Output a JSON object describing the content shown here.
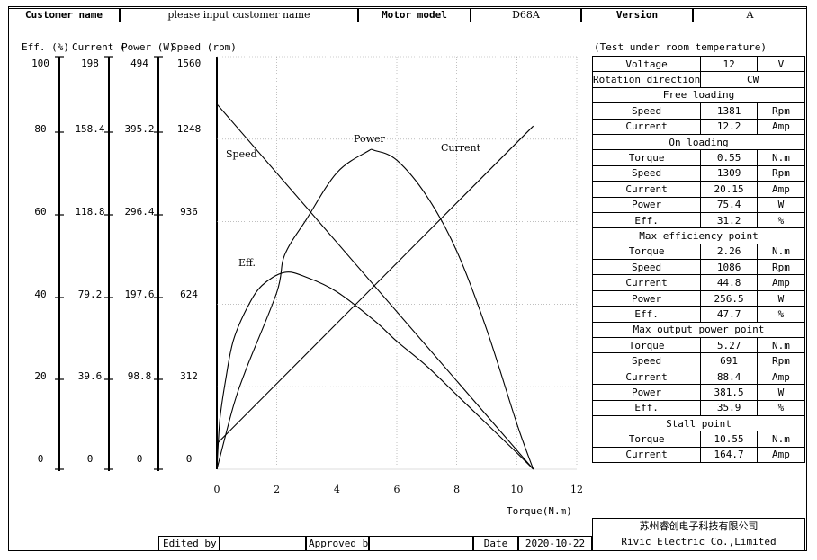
{
  "header": {
    "customer_name_label": "Customer name",
    "customer_name_value": "please input customer name",
    "motor_model_label": "Motor model",
    "motor_model_value": "D68A",
    "version_label": "Version",
    "version_value": "A"
  },
  "axes": {
    "eff_label": "Eff. (%)",
    "current_label": "Current (",
    "power_label": "Power (W)",
    "speed_label": "Speed (rpm)",
    "eff_ticks": [
      "100",
      "80",
      "60",
      "40",
      "20",
      "0"
    ],
    "current_ticks": [
      "198",
      "158.4",
      "118.8",
      "79.2",
      "39.6",
      "0"
    ],
    "power_ticks": [
      "494",
      "395.2",
      "296.4",
      "197.6",
      "98.8",
      "0"
    ],
    "speed_ticks": [
      "1560",
      "1248",
      "936",
      "624",
      "312",
      "0"
    ],
    "torque_ticks": [
      "0",
      "2",
      "4",
      "6",
      "8",
      "10",
      "12"
    ],
    "torque_label": "Torque(N.m)"
  },
  "chart_data": {
    "type": "line",
    "xlabel": "Torque(N.m)",
    "xlim": [
      0,
      12
    ],
    "grid": true,
    "series": [
      {
        "name": "Speed",
        "axis": "speed",
        "ylim": [
          0,
          1560
        ],
        "x": [
          0,
          10.55
        ],
        "y": [
          1381,
          0
        ]
      },
      {
        "name": "Current",
        "axis": "current",
        "ylim": [
          0,
          198
        ],
        "x": [
          0,
          10.55
        ],
        "y": [
          12.2,
          164.7
        ]
      },
      {
        "name": "Power",
        "axis": "power",
        "ylim": [
          0,
          494
        ],
        "x": [
          0,
          0.55,
          1,
          2,
          2.26,
          3,
          4,
          5,
          5.27,
          6,
          7,
          8,
          9,
          10,
          10.55
        ],
        "y": [
          0,
          75.4,
          122,
          212,
          256.5,
          300,
          355,
          380,
          381.5,
          370,
          327,
          261,
          167,
          55,
          0
        ]
      },
      {
        "name": "Eff.",
        "axis": "eff",
        "ylim": [
          0,
          100
        ],
        "x": [
          0,
          0.1,
          0.3,
          0.55,
          1,
          1.5,
          2.26,
          3,
          4,
          5.27,
          6,
          7,
          8,
          9,
          10,
          10.55
        ],
        "y": [
          0,
          12,
          22,
          31.2,
          39,
          44.5,
          47.7,
          46.5,
          43,
          35.9,
          31,
          25,
          18,
          11,
          4,
          0
        ]
      }
    ]
  },
  "right_table": {
    "test_note": "(Test under room temperature)",
    "voltage": {
      "label": "Voltage",
      "value": "12",
      "unit": "V"
    },
    "rotation": {
      "label": "Rotation direction",
      "value": "CW"
    },
    "free_loading": {
      "title": "Free loading",
      "rows": [
        {
          "label": "Speed",
          "value": "1381",
          "unit": "Rpm"
        },
        {
          "label": "Current",
          "value": "12.2",
          "unit": "Amp"
        }
      ]
    },
    "on_loading": {
      "title": "On loading",
      "rows": [
        {
          "label": "Torque",
          "value": "0.55",
          "unit": "N.m"
        },
        {
          "label": "Speed",
          "value": "1309",
          "unit": "Rpm"
        },
        {
          "label": "Current",
          "value": "20.15",
          "unit": "Amp"
        },
        {
          "label": "Power",
          "value": "75.4",
          "unit": "W"
        },
        {
          "label": "Eff.",
          "value": "31.2",
          "unit": "%"
        }
      ]
    },
    "max_eff": {
      "title": "Max efficiency point",
      "rows": [
        {
          "label": "Torque",
          "value": "2.26",
          "unit": "N.m"
        },
        {
          "label": "Speed",
          "value": "1086",
          "unit": "Rpm"
        },
        {
          "label": "Current",
          "value": "44.8",
          "unit": "Amp"
        },
        {
          "label": "Power",
          "value": "256.5",
          "unit": "W"
        },
        {
          "label": "Eff.",
          "value": "47.7",
          "unit": "%"
        }
      ]
    },
    "max_power": {
      "title": "Max output power point",
      "rows": [
        {
          "label": "Torque",
          "value": "5.27",
          "unit": "N.m"
        },
        {
          "label": "Speed",
          "value": "691",
          "unit": "Rpm"
        },
        {
          "label": "Current",
          "value": "88.4",
          "unit": "Amp"
        },
        {
          "label": "Power",
          "value": "381.5",
          "unit": "W"
        },
        {
          "label": "Eff.",
          "value": "35.9",
          "unit": "%"
        }
      ]
    },
    "stall": {
      "title": "Stall point",
      "rows": [
        {
          "label": "Torque",
          "value": "10.55",
          "unit": "N.m"
        },
        {
          "label": "Current",
          "value": "164.7",
          "unit": "Amp"
        }
      ]
    }
  },
  "footer": {
    "edited_by_label": "Edited by",
    "edited_by_value": "",
    "approved_by_label": "Approved by",
    "approved_by_value": "",
    "date_label": "Date",
    "date_value": "2020-10-22",
    "company_cn": "苏州睿创电子科技有限公司",
    "company_en": "Rivic Electric Co.,Limited"
  }
}
